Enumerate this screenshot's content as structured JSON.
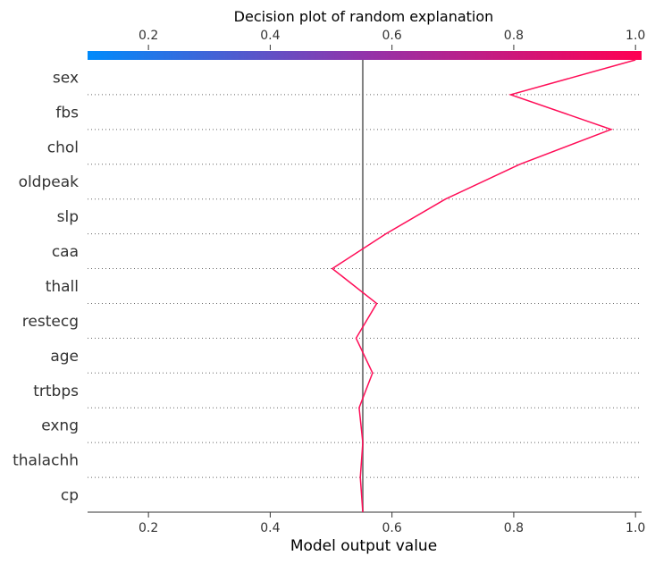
{
  "chart_data": {
    "type": "line",
    "title": "Decision plot of random explanation",
    "xlabel": "Model output value",
    "xlim": [
      0.1,
      1.01
    ],
    "x_ticks": [
      "0.2",
      "0.4",
      "0.6",
      "0.8",
      "1.0"
    ],
    "x_tick_values": [
      0.2,
      0.4,
      0.6,
      0.8,
      1.0
    ],
    "base_value": 0.552,
    "features": [
      "sex",
      "fbs",
      "chol",
      "oldpeak",
      "slp",
      "caa",
      "thall",
      "restecg",
      "age",
      "trtbps",
      "exng",
      "thalachh",
      "cp"
    ],
    "path_x": [
      1.0,
      0.795,
      0.96,
      0.81,
      0.688,
      0.59,
      0.502,
      0.575,
      0.541,
      0.568,
      0.546,
      0.552,
      0.548,
      0.552
    ],
    "line_color": "#ff0d57",
    "base_line_color": "#808080",
    "colorbar": {
      "from": "#008bfb",
      "mid": "#9333aa",
      "to": "#ff0052"
    },
    "grid": "dotted horizontal separators between features"
  }
}
